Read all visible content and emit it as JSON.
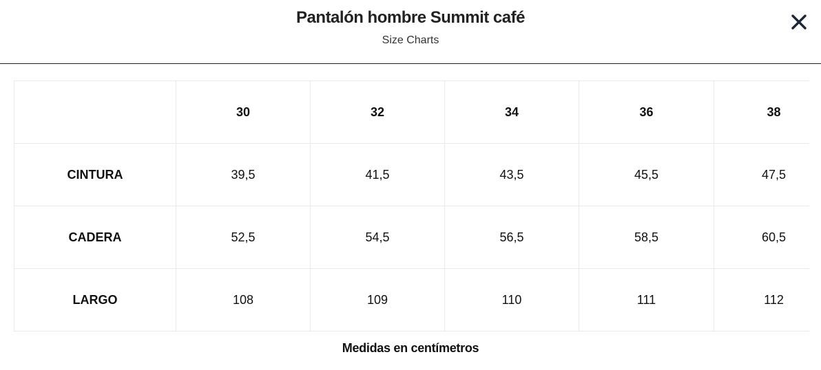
{
  "header": {
    "title": "Pantalón hombre Summit café",
    "subtitle": "Size Charts"
  },
  "table": {
    "columns": [
      "30",
      "32",
      "34",
      "36",
      "38"
    ],
    "rows": [
      {
        "label": "CINTURA",
        "values": [
          "39,5",
          "41,5",
          "43,5",
          "45,5",
          "47,5"
        ]
      },
      {
        "label": "CADERA",
        "values": [
          "52,5",
          "54,5",
          "56,5",
          "58,5",
          "60,5"
        ]
      },
      {
        "label": "LARGO",
        "values": [
          "108",
          "109",
          "110",
          "111",
          "112"
        ]
      }
    ]
  },
  "footer": {
    "note": "Medidas en centímetros"
  }
}
